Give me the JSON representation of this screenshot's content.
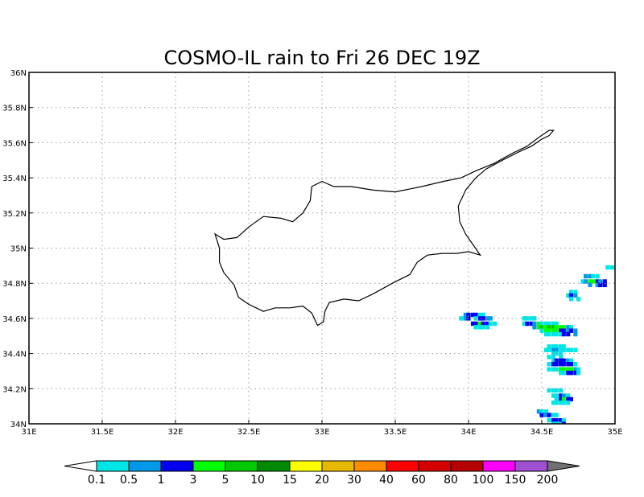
{
  "title": "COSMO-IL rain to Fri 26 DEC 19Z",
  "axes": {
    "x_ticks": [
      {
        "value": 31.0,
        "label": "31E"
      },
      {
        "value": 31.5,
        "label": "31.5E"
      },
      {
        "value": 32.0,
        "label": "32E"
      },
      {
        "value": 32.5,
        "label": "32.5E"
      },
      {
        "value": 33.0,
        "label": "33E"
      },
      {
        "value": 33.5,
        "label": "33.5E"
      },
      {
        "value": 34.0,
        "label": "34E"
      },
      {
        "value": 34.5,
        "label": "34.5E"
      },
      {
        "value": 35.0,
        "label": "35E"
      }
    ],
    "y_ticks": [
      {
        "value": 34.0,
        "label": "34N"
      },
      {
        "value": 34.2,
        "label": "34.2N"
      },
      {
        "value": 34.4,
        "label": "34.4N"
      },
      {
        "value": 34.6,
        "label": "34.6N"
      },
      {
        "value": 34.8,
        "label": "34.8N"
      },
      {
        "value": 35.0,
        "label": "35N"
      },
      {
        "value": 35.2,
        "label": "35.2N"
      },
      {
        "value": 35.4,
        "label": "35.4N"
      },
      {
        "value": 35.6,
        "label": "35.6N"
      },
      {
        "value": 35.8,
        "label": "35.8N"
      },
      {
        "value": 36.0,
        "label": "36N"
      }
    ],
    "lon_range": [
      31,
      35
    ],
    "lat_range": [
      34,
      36
    ],
    "grid": true
  },
  "colorbar": {
    "labels": [
      "0.1",
      "0.5",
      "1",
      "3",
      "5",
      "10",
      "15",
      "20",
      "30",
      "40",
      "60",
      "80",
      "100",
      "150",
      "200"
    ],
    "under_color": "#ffffff",
    "colors": [
      "#00e5e5",
      "#0098e8",
      "#0000ee",
      "#00ff00",
      "#00c800",
      "#008a00",
      "#ffff00",
      "#e6b800",
      "#ff8c00",
      "#ff0000",
      "#d50000",
      "#b40000",
      "#ff00ff",
      "#a050d0"
    ],
    "over_color": "#707070"
  },
  "coastline": [
    [
      32.27,
      35.08
    ],
    [
      32.33,
      35.05
    ],
    [
      32.42,
      35.06
    ],
    [
      32.5,
      35.12
    ],
    [
      32.6,
      35.18
    ],
    [
      32.72,
      35.17
    ],
    [
      32.8,
      35.15
    ],
    [
      32.87,
      35.2
    ],
    [
      32.92,
      35.27
    ],
    [
      32.93,
      35.35
    ],
    [
      33.0,
      35.38
    ],
    [
      33.08,
      35.35
    ],
    [
      33.2,
      35.35
    ],
    [
      33.35,
      35.33
    ],
    [
      33.5,
      35.32
    ],
    [
      33.68,
      35.35
    ],
    [
      33.83,
      35.38
    ],
    [
      33.95,
      35.4
    ],
    [
      34.05,
      35.44
    ],
    [
      34.17,
      35.48
    ],
    [
      34.3,
      35.54
    ],
    [
      34.4,
      35.58
    ],
    [
      34.48,
      35.63
    ],
    [
      34.55,
      35.67
    ],
    [
      34.58,
      35.67
    ],
    [
      34.55,
      35.64
    ],
    [
      34.5,
      35.62
    ],
    [
      34.43,
      35.58
    ],
    [
      34.35,
      35.55
    ],
    [
      34.23,
      35.5
    ],
    [
      34.12,
      35.45
    ],
    [
      34.05,
      35.4
    ],
    [
      33.98,
      35.33
    ],
    [
      33.93,
      35.24
    ],
    [
      33.94,
      35.15
    ],
    [
      33.98,
      35.08
    ],
    [
      34.03,
      35.02
    ],
    [
      34.08,
      34.96
    ],
    [
      34.0,
      34.98
    ],
    [
      33.92,
      34.97
    ],
    [
      33.82,
      34.97
    ],
    [
      33.72,
      34.96
    ],
    [
      33.65,
      34.92
    ],
    [
      33.6,
      34.85
    ],
    [
      33.48,
      34.8
    ],
    [
      33.35,
      34.74
    ],
    [
      33.25,
      34.7
    ],
    [
      33.15,
      34.71
    ],
    [
      33.05,
      34.69
    ],
    [
      33.02,
      34.64
    ],
    [
      33.01,
      34.58
    ],
    [
      32.97,
      34.56
    ],
    [
      32.93,
      34.63
    ],
    [
      32.87,
      34.67
    ],
    [
      32.78,
      34.66
    ],
    [
      32.68,
      34.66
    ],
    [
      32.6,
      34.64
    ],
    [
      32.5,
      34.68
    ],
    [
      32.43,
      34.72
    ],
    [
      32.4,
      34.79
    ],
    [
      32.33,
      34.86
    ],
    [
      32.3,
      34.92
    ],
    [
      32.3,
      35.0
    ],
    [
      32.27,
      35.08
    ]
  ],
  "rain_cells": [
    [
      34.8,
      34.84,
      1
    ],
    [
      34.83,
      34.84,
      1
    ],
    [
      34.85,
      34.84,
      0
    ],
    [
      34.88,
      34.84,
      0
    ],
    [
      34.78,
      34.81,
      0
    ],
    [
      34.8,
      34.81,
      1
    ],
    [
      34.83,
      34.81,
      3
    ],
    [
      34.85,
      34.81,
      3
    ],
    [
      34.88,
      34.81,
      2
    ],
    [
      34.9,
      34.81,
      1
    ],
    [
      34.93,
      34.81,
      2
    ],
    [
      34.83,
      34.79,
      1
    ],
    [
      34.88,
      34.79,
      1
    ],
    [
      34.9,
      34.79,
      2
    ],
    [
      34.93,
      34.79,
      2
    ],
    [
      34.98,
      34.89,
      0
    ],
    [
      34.95,
      34.89,
      0
    ],
    [
      34.7,
      34.75,
      0
    ],
    [
      34.73,
      34.75,
      0
    ],
    [
      34.68,
      34.73,
      0
    ],
    [
      34.7,
      34.73,
      2
    ],
    [
      34.73,
      34.73,
      1
    ],
    [
      34.7,
      34.71,
      0
    ],
    [
      34.75,
      34.71,
      0
    ],
    [
      33.98,
      34.62,
      1
    ],
    [
      34.0,
      34.62,
      2
    ],
    [
      34.03,
      34.62,
      2
    ],
    [
      34.05,
      34.62,
      2
    ],
    [
      34.08,
      34.62,
      0
    ],
    [
      34.1,
      34.62,
      0
    ],
    [
      33.95,
      34.6,
      0
    ],
    [
      33.98,
      34.6,
      1
    ],
    [
      34.0,
      34.6,
      2
    ],
    [
      34.05,
      34.6,
      0
    ],
    [
      34.08,
      34.6,
      2
    ],
    [
      34.1,
      34.6,
      2
    ],
    [
      34.13,
      34.6,
      1
    ],
    [
      34.15,
      34.6,
      1
    ],
    [
      34.03,
      34.57,
      2
    ],
    [
      34.05,
      34.57,
      2
    ],
    [
      34.08,
      34.57,
      3
    ],
    [
      34.1,
      34.57,
      2
    ],
    [
      34.13,
      34.57,
      2
    ],
    [
      34.15,
      34.57,
      0
    ],
    [
      34.18,
      34.57,
      0
    ],
    [
      34.05,
      34.55,
      0
    ],
    [
      34.08,
      34.55,
      0
    ],
    [
      34.1,
      34.55,
      0
    ],
    [
      34.13,
      34.55,
      0
    ],
    [
      34.38,
      34.6,
      0
    ],
    [
      34.4,
      34.6,
      0
    ],
    [
      34.43,
      34.6,
      0
    ],
    [
      34.45,
      34.6,
      0
    ],
    [
      34.38,
      34.57,
      0
    ],
    [
      34.4,
      34.57,
      2
    ],
    [
      34.43,
      34.57,
      2
    ],
    [
      34.45,
      34.57,
      1
    ],
    [
      34.48,
      34.57,
      3
    ],
    [
      34.5,
      34.57,
      0
    ],
    [
      34.53,
      34.57,
      0
    ],
    [
      34.55,
      34.57,
      0
    ],
    [
      34.58,
      34.57,
      0
    ],
    [
      34.6,
      34.57,
      0
    ],
    [
      34.45,
      34.55,
      1
    ],
    [
      34.48,
      34.55,
      3
    ],
    [
      34.5,
      34.55,
      4
    ],
    [
      34.53,
      34.55,
      3
    ],
    [
      34.55,
      34.55,
      4
    ],
    [
      34.58,
      34.55,
      4
    ],
    [
      34.6,
      34.55,
      3
    ],
    [
      34.63,
      34.55,
      3
    ],
    [
      34.65,
      34.55,
      3
    ],
    [
      34.68,
      34.55,
      1
    ],
    [
      34.7,
      34.55,
      0
    ],
    [
      34.5,
      34.53,
      0
    ],
    [
      34.53,
      34.53,
      3
    ],
    [
      34.55,
      34.53,
      3
    ],
    [
      34.58,
      34.53,
      3
    ],
    [
      34.6,
      34.53,
      3
    ],
    [
      34.63,
      34.53,
      2
    ],
    [
      34.65,
      34.53,
      2
    ],
    [
      34.68,
      34.53,
      1
    ],
    [
      34.7,
      34.53,
      2
    ],
    [
      34.73,
      34.53,
      1
    ],
    [
      34.53,
      34.51,
      0
    ],
    [
      34.55,
      34.51,
      0
    ],
    [
      34.58,
      34.51,
      0
    ],
    [
      34.6,
      34.51,
      0
    ],
    [
      34.63,
      34.51,
      0
    ],
    [
      34.65,
      34.51,
      2
    ],
    [
      34.68,
      34.51,
      2
    ],
    [
      34.73,
      34.51,
      1
    ],
    [
      34.55,
      34.44,
      0
    ],
    [
      34.58,
      34.44,
      0
    ],
    [
      34.6,
      34.44,
      0
    ],
    [
      34.63,
      34.44,
      0
    ],
    [
      34.65,
      34.44,
      0
    ],
    [
      34.53,
      34.42,
      0
    ],
    [
      34.55,
      34.42,
      0
    ],
    [
      34.58,
      34.42,
      1
    ],
    [
      34.6,
      34.42,
      1
    ],
    [
      34.63,
      34.42,
      0
    ],
    [
      34.65,
      34.42,
      0
    ],
    [
      34.68,
      34.42,
      0
    ],
    [
      34.7,
      34.42,
      0
    ],
    [
      34.73,
      34.42,
      0
    ],
    [
      34.58,
      34.4,
      0
    ],
    [
      34.6,
      34.4,
      0
    ],
    [
      34.63,
      34.4,
      0
    ],
    [
      34.55,
      34.38,
      0
    ],
    [
      34.58,
      34.38,
      0
    ],
    [
      34.63,
      34.38,
      0
    ],
    [
      34.58,
      34.36,
      0
    ],
    [
      34.6,
      34.36,
      2
    ],
    [
      34.63,
      34.36,
      2
    ],
    [
      34.65,
      34.36,
      2
    ],
    [
      34.68,
      34.36,
      1
    ],
    [
      34.7,
      34.36,
      0
    ],
    [
      34.55,
      34.34,
      0
    ],
    [
      34.58,
      34.34,
      2
    ],
    [
      34.6,
      34.34,
      2
    ],
    [
      34.63,
      34.34,
      2
    ],
    [
      34.65,
      34.34,
      2
    ],
    [
      34.68,
      34.34,
      2
    ],
    [
      34.7,
      34.34,
      2
    ],
    [
      34.73,
      34.34,
      0
    ],
    [
      34.55,
      34.31,
      0
    ],
    [
      34.58,
      34.31,
      0
    ],
    [
      34.6,
      34.31,
      0
    ],
    [
      34.63,
      34.31,
      3
    ],
    [
      34.65,
      34.31,
      3
    ],
    [
      34.68,
      34.31,
      3
    ],
    [
      34.7,
      34.31,
      3
    ],
    [
      34.73,
      34.31,
      1
    ],
    [
      34.75,
      34.31,
      0
    ],
    [
      34.63,
      34.29,
      0
    ],
    [
      34.65,
      34.29,
      0
    ],
    [
      34.68,
      34.29,
      2
    ],
    [
      34.7,
      34.29,
      2
    ],
    [
      34.73,
      34.29,
      2
    ],
    [
      34.75,
      34.29,
      0
    ],
    [
      34.55,
      34.19,
      0
    ],
    [
      34.58,
      34.19,
      0
    ],
    [
      34.6,
      34.19,
      0
    ],
    [
      34.63,
      34.19,
      0
    ],
    [
      34.58,
      34.16,
      0
    ],
    [
      34.6,
      34.16,
      0
    ],
    [
      34.63,
      34.16,
      2
    ],
    [
      34.65,
      34.16,
      1
    ],
    [
      34.68,
      34.16,
      0
    ],
    [
      34.6,
      34.14,
      0
    ],
    [
      34.63,
      34.14,
      2
    ],
    [
      34.65,
      34.14,
      3
    ],
    [
      34.68,
      34.14,
      2
    ],
    [
      34.7,
      34.14,
      2
    ],
    [
      34.58,
      34.12,
      0
    ],
    [
      34.6,
      34.12,
      0
    ],
    [
      34.63,
      34.12,
      0
    ],
    [
      34.65,
      34.12,
      0
    ],
    [
      34.68,
      34.12,
      0
    ],
    [
      34.48,
      34.07,
      1
    ],
    [
      34.5,
      34.07,
      0
    ],
    [
      34.53,
      34.07,
      0
    ],
    [
      34.5,
      34.05,
      2
    ],
    [
      34.53,
      34.05,
      1
    ],
    [
      34.55,
      34.05,
      2
    ],
    [
      34.58,
      34.05,
      0
    ],
    [
      34.6,
      34.05,
      0
    ],
    [
      34.55,
      34.02,
      0
    ],
    [
      34.58,
      34.02,
      2
    ],
    [
      34.6,
      34.02,
      2
    ],
    [
      34.63,
      34.02,
      2
    ],
    [
      34.65,
      34.02,
      0
    ],
    [
      34.58,
      34.0,
      0
    ],
    [
      34.6,
      34.0,
      0
    ],
    [
      34.63,
      34.0,
      0
    ],
    [
      34.65,
      34.0,
      2
    ]
  ]
}
